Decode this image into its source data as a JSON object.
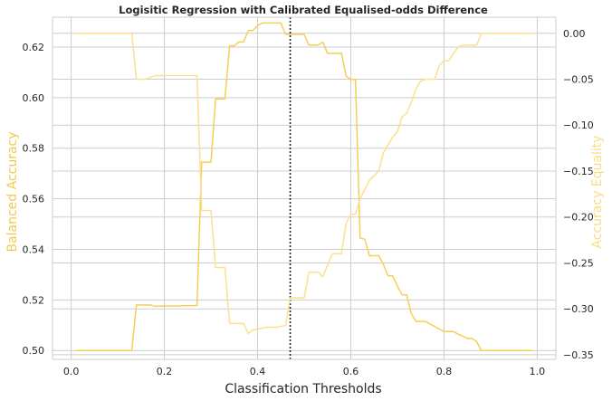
{
  "chart_data": {
    "type": "line",
    "title": "Logisitic Regression with Calibrated Equalised-odds Difference",
    "xlabel": "Classification Thresholds",
    "ylabel_left": "Balanced Accuracy",
    "ylabel_right": "Accuracy Equality",
    "xlim": [
      -0.04,
      1.04
    ],
    "ylim_left": [
      0.4965,
      0.6318
    ],
    "ylim_right": [
      -0.355,
      0.0175
    ],
    "xticks": [
      0.0,
      0.2,
      0.4,
      0.6,
      0.8,
      1.0
    ],
    "xtick_labels": [
      "0.0",
      "0.2",
      "0.4",
      "0.6",
      "0.8",
      "1.0"
    ],
    "yticks_left": [
      0.5,
      0.52,
      0.54,
      0.56,
      0.58,
      0.6,
      0.62
    ],
    "ytick_labels_left": [
      "0.50",
      "0.52",
      "0.54",
      "0.56",
      "0.58",
      "0.60",
      "0.62"
    ],
    "yticks_right": [
      0.0,
      -0.05,
      -0.1,
      -0.15,
      -0.2,
      -0.25,
      -0.3,
      -0.35
    ],
    "ytick_labels_right": [
      "0.00",
      "−0.05",
      "−0.10",
      "−0.15",
      "−0.20",
      "−0.25",
      "−0.30",
      "−0.35"
    ],
    "grid": true,
    "vline": {
      "x": 0.47,
      "style": "dotted",
      "color": "#222222"
    },
    "colors": {
      "left": "#f5cf55",
      "right": "#fde08c",
      "left_label": "#f0c94e",
      "right_label": "#fbdc86"
    },
    "series": [
      {
        "axis": "left",
        "x": [
          0.01,
          0.13,
          0.14,
          0.17,
          0.18,
          0.27,
          0.28,
          0.3,
          0.31,
          0.33,
          0.34,
          0.35,
          0.36,
          0.37,
          0.38,
          0.39,
          0.4,
          0.41,
          0.45,
          0.46,
          0.5,
          0.51,
          0.53,
          0.54,
          0.55,
          0.56,
          0.58,
          0.59,
          0.6,
          0.61,
          0.62,
          0.63,
          0.64,
          0.66,
          0.67,
          0.68,
          0.69,
          0.7,
          0.71,
          0.72,
          0.73,
          0.74,
          0.76,
          0.78,
          0.8,
          0.82,
          0.83,
          0.85,
          0.86,
          0.87,
          0.88,
          0.99
        ],
        "y": [
          0.5,
          0.5,
          0.518,
          0.518,
          0.5175,
          0.5178,
          0.5745,
          0.5745,
          0.5995,
          0.5995,
          0.6205,
          0.6205,
          0.622,
          0.622,
          0.6265,
          0.6265,
          0.6285,
          0.6295,
          0.6295,
          0.625,
          0.625,
          0.6208,
          0.6208,
          0.622,
          0.6175,
          0.6175,
          0.6175,
          0.6085,
          0.6072,
          0.6072,
          0.5445,
          0.544,
          0.5375,
          0.5375,
          0.534,
          0.5295,
          0.5295,
          0.5255,
          0.522,
          0.522,
          0.5145,
          0.5115,
          0.5115,
          0.5095,
          0.5075,
          0.5075,
          0.5065,
          0.5048,
          0.5048,
          0.5035,
          0.5,
          0.5
        ]
      },
      {
        "axis": "right",
        "x": [
          0.01,
          0.13,
          0.14,
          0.16,
          0.17,
          0.18,
          0.2,
          0.27,
          0.28,
          0.3,
          0.31,
          0.33,
          0.34,
          0.37,
          0.38,
          0.39,
          0.42,
          0.44,
          0.46,
          0.47,
          0.48,
          0.5,
          0.51,
          0.53,
          0.54,
          0.56,
          0.57,
          0.58,
          0.59,
          0.6,
          0.61,
          0.62,
          0.64,
          0.66,
          0.67,
          0.69,
          0.7,
          0.71,
          0.72,
          0.73,
          0.74,
          0.75,
          0.76,
          0.78,
          0.79,
          0.8,
          0.81,
          0.83,
          0.84,
          0.87,
          0.88,
          0.99
        ],
        "y": [
          0.0,
          0.0,
          -0.05,
          -0.05,
          -0.048,
          -0.046,
          -0.046,
          -0.046,
          -0.193,
          -0.193,
          -0.255,
          -0.255,
          -0.316,
          -0.316,
          -0.327,
          -0.323,
          -0.32,
          -0.32,
          -0.318,
          -0.288,
          -0.288,
          -0.288,
          -0.26,
          -0.26,
          -0.265,
          -0.24,
          -0.24,
          -0.24,
          -0.207,
          -0.197,
          -0.197,
          -0.18,
          -0.16,
          -0.15,
          -0.13,
          -0.113,
          -0.107,
          -0.091,
          -0.087,
          -0.075,
          -0.06,
          -0.052,
          -0.05,
          -0.05,
          -0.035,
          -0.03,
          -0.03,
          -0.015,
          -0.013,
          -0.013,
          0.0,
          0.0
        ]
      }
    ]
  }
}
